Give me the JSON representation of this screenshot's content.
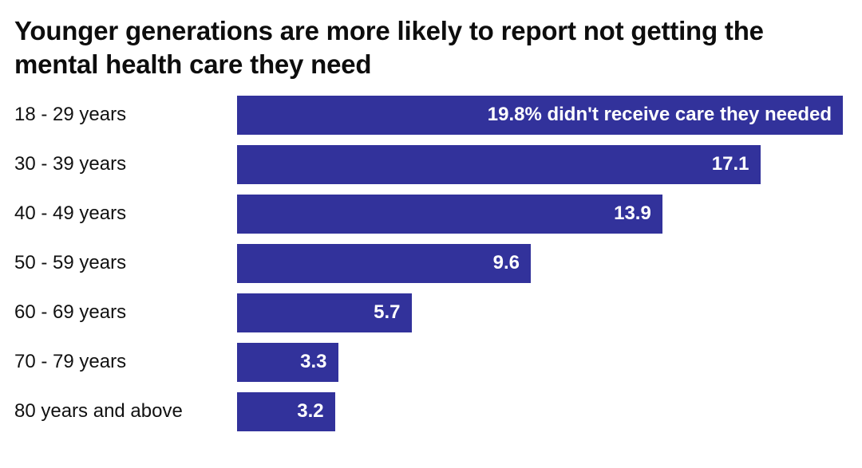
{
  "chart_data": {
    "type": "bar",
    "orientation": "horizontal",
    "title": "Younger generations are more likely to report not getting the mental health care they need",
    "categories": [
      "18 - 29 years",
      "30 - 39 years",
      "40 - 49 years",
      "50 - 59 years",
      "60 - 69 years",
      "70 - 79 years",
      "80 years and above"
    ],
    "values": [
      19.8,
      17.1,
      13.9,
      9.6,
      5.7,
      3.3,
      3.2
    ],
    "bar_labels": [
      "19.8% didn't receive care they needed",
      "17.1",
      "13.9",
      "9.6",
      "5.7",
      "3.3",
      "3.2"
    ],
    "xlabel": "",
    "ylabel": "",
    "xlim": [
      0,
      19.8
    ],
    "grid": false,
    "legend": false,
    "bar_color": "#32329b",
    "label_color": "#ffffff",
    "background_color": "#ffffff"
  }
}
